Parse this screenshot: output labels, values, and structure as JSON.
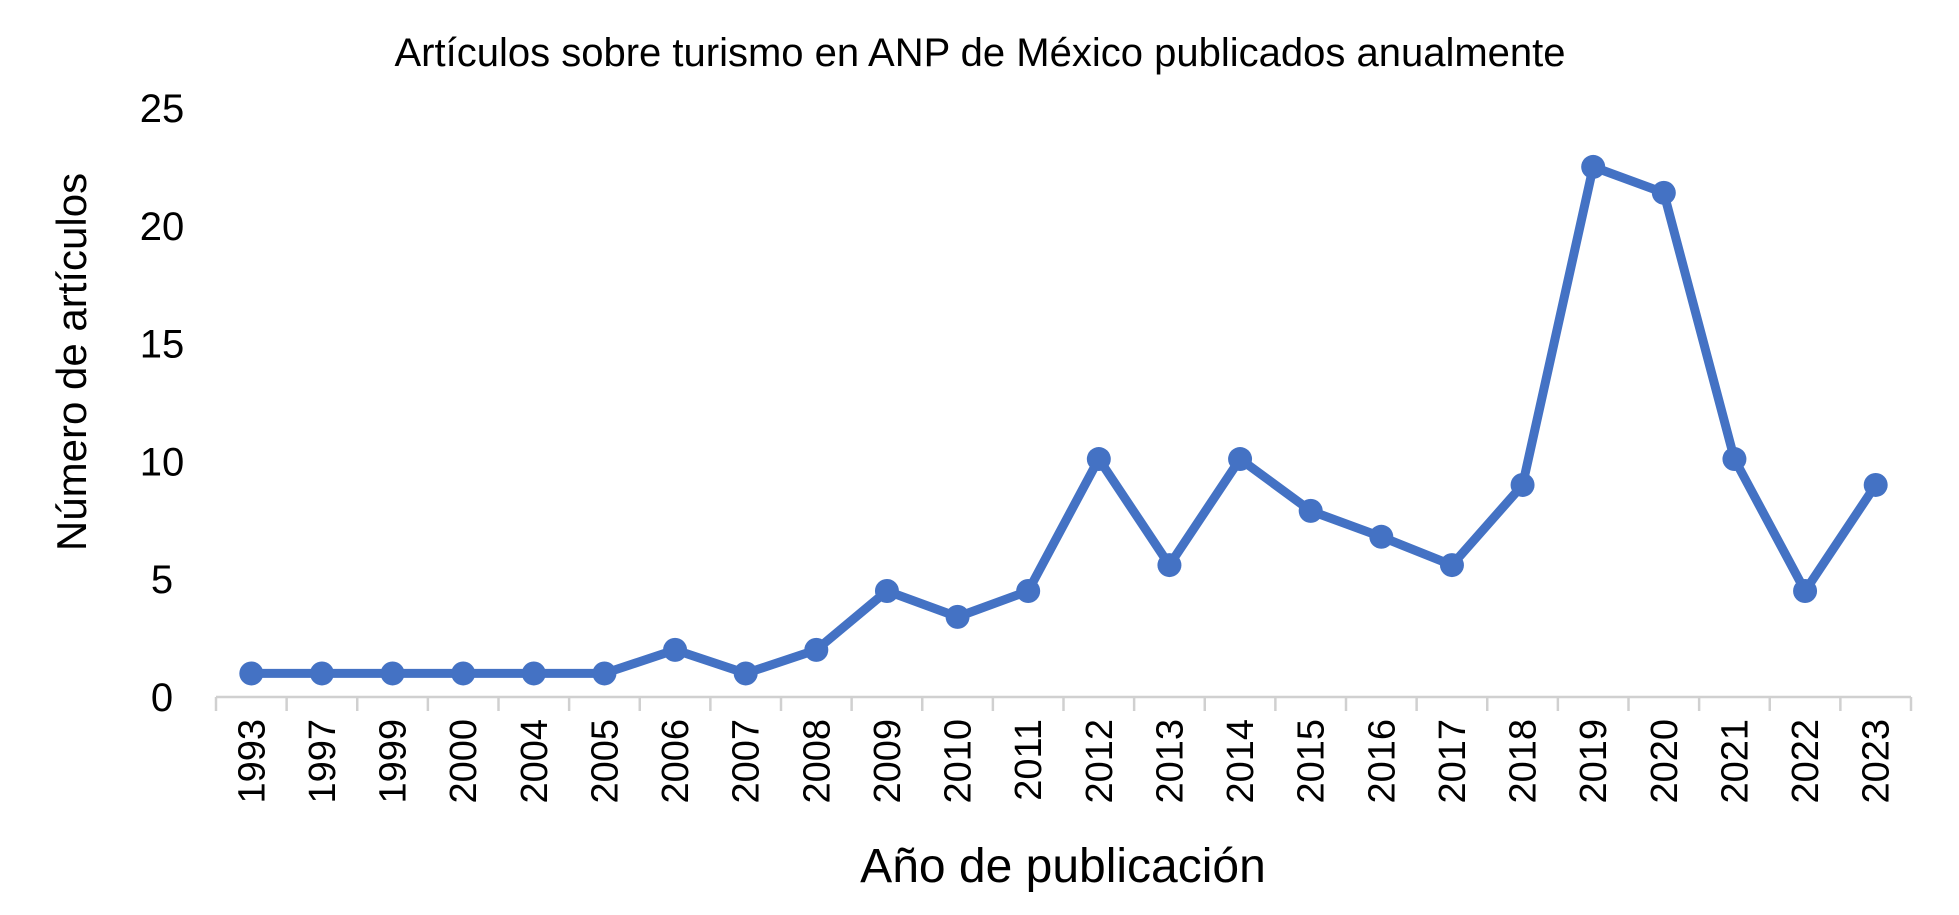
{
  "chart_data": {
    "type": "line",
    "title": "Artículos sobre turismo en ANP de México publicados anualmente",
    "xlabel": "Año de publicación",
    "ylabel": "Número de artículos",
    "categories": [
      "1993",
      "1997",
      "1999",
      "2000",
      "2004",
      "2005",
      "2006",
      "2007",
      "2008",
      "2009",
      "2010",
      "2011",
      "2012",
      "2013",
      "2014",
      "2015",
      "2016",
      "2017",
      "2018",
      "2019",
      "2020",
      "2021",
      "2022",
      "2023"
    ],
    "series": [
      {
        "values": [
          1,
          1,
          1,
          1,
          1,
          1,
          2,
          1,
          2,
          4.5,
          3.4,
          4.5,
          10.1,
          5.6,
          10.1,
          7.9,
          6.8,
          5.6,
          9,
          22.5,
          21.4,
          10.1,
          4.5,
          9
        ]
      }
    ],
    "ylim": [
      0,
      25
    ],
    "yticks": [
      0,
      5,
      10,
      15,
      20,
      25
    ],
    "grid": false,
    "legend": "none",
    "colors": {
      "series": "#4472C4",
      "axis": "#D0D0D0",
      "text": "#000000"
    }
  }
}
